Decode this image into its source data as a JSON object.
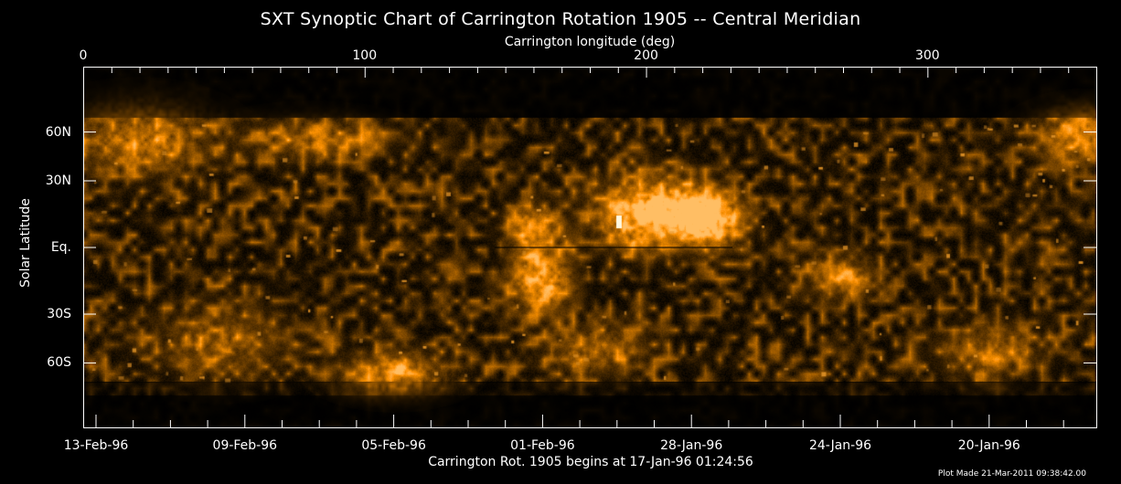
{
  "chart_data": {
    "type": "heatmap",
    "title": "SXT Synoptic Chart of Carrington Rotation 1905 -- Central Meridian",
    "xlabel": "Carrington longitude (deg)",
    "ylabel": "Solar Latitude",
    "subtitle": "Carrington Rot. 1905 begins at 17-Jan-96 01:24:56",
    "footnote": "Plot Made 21-Mar-2011 09:38:42.00",
    "xlim": [
      0,
      360
    ],
    "x_ticks": [
      {
        "value": 0,
        "label": "0"
      },
      {
        "value": 100,
        "label": "100"
      },
      {
        "value": 200,
        "label": "200"
      },
      {
        "value": 300,
        "label": "300"
      }
    ],
    "y_scale": "sine-latitude",
    "y_ticks": [
      {
        "value": 60,
        "label": "60N"
      },
      {
        "value": 30,
        "label": "30N"
      },
      {
        "value": 0,
        "label": "Eq."
      },
      {
        "value": -30,
        "label": "30S"
      },
      {
        "value": -60,
        "label": "60S"
      }
    ],
    "date_ticks": [
      "13-Feb-96",
      "09-Feb-96",
      "05-Feb-96",
      "01-Feb-96",
      "28-Jan-96",
      "24-Jan-96",
      "20-Jan-96"
    ],
    "colormap": [
      "#000000",
      "#6b3a00",
      "#c77a10",
      "#ffd27a",
      "#ffffff"
    ],
    "equator_line": true
  }
}
